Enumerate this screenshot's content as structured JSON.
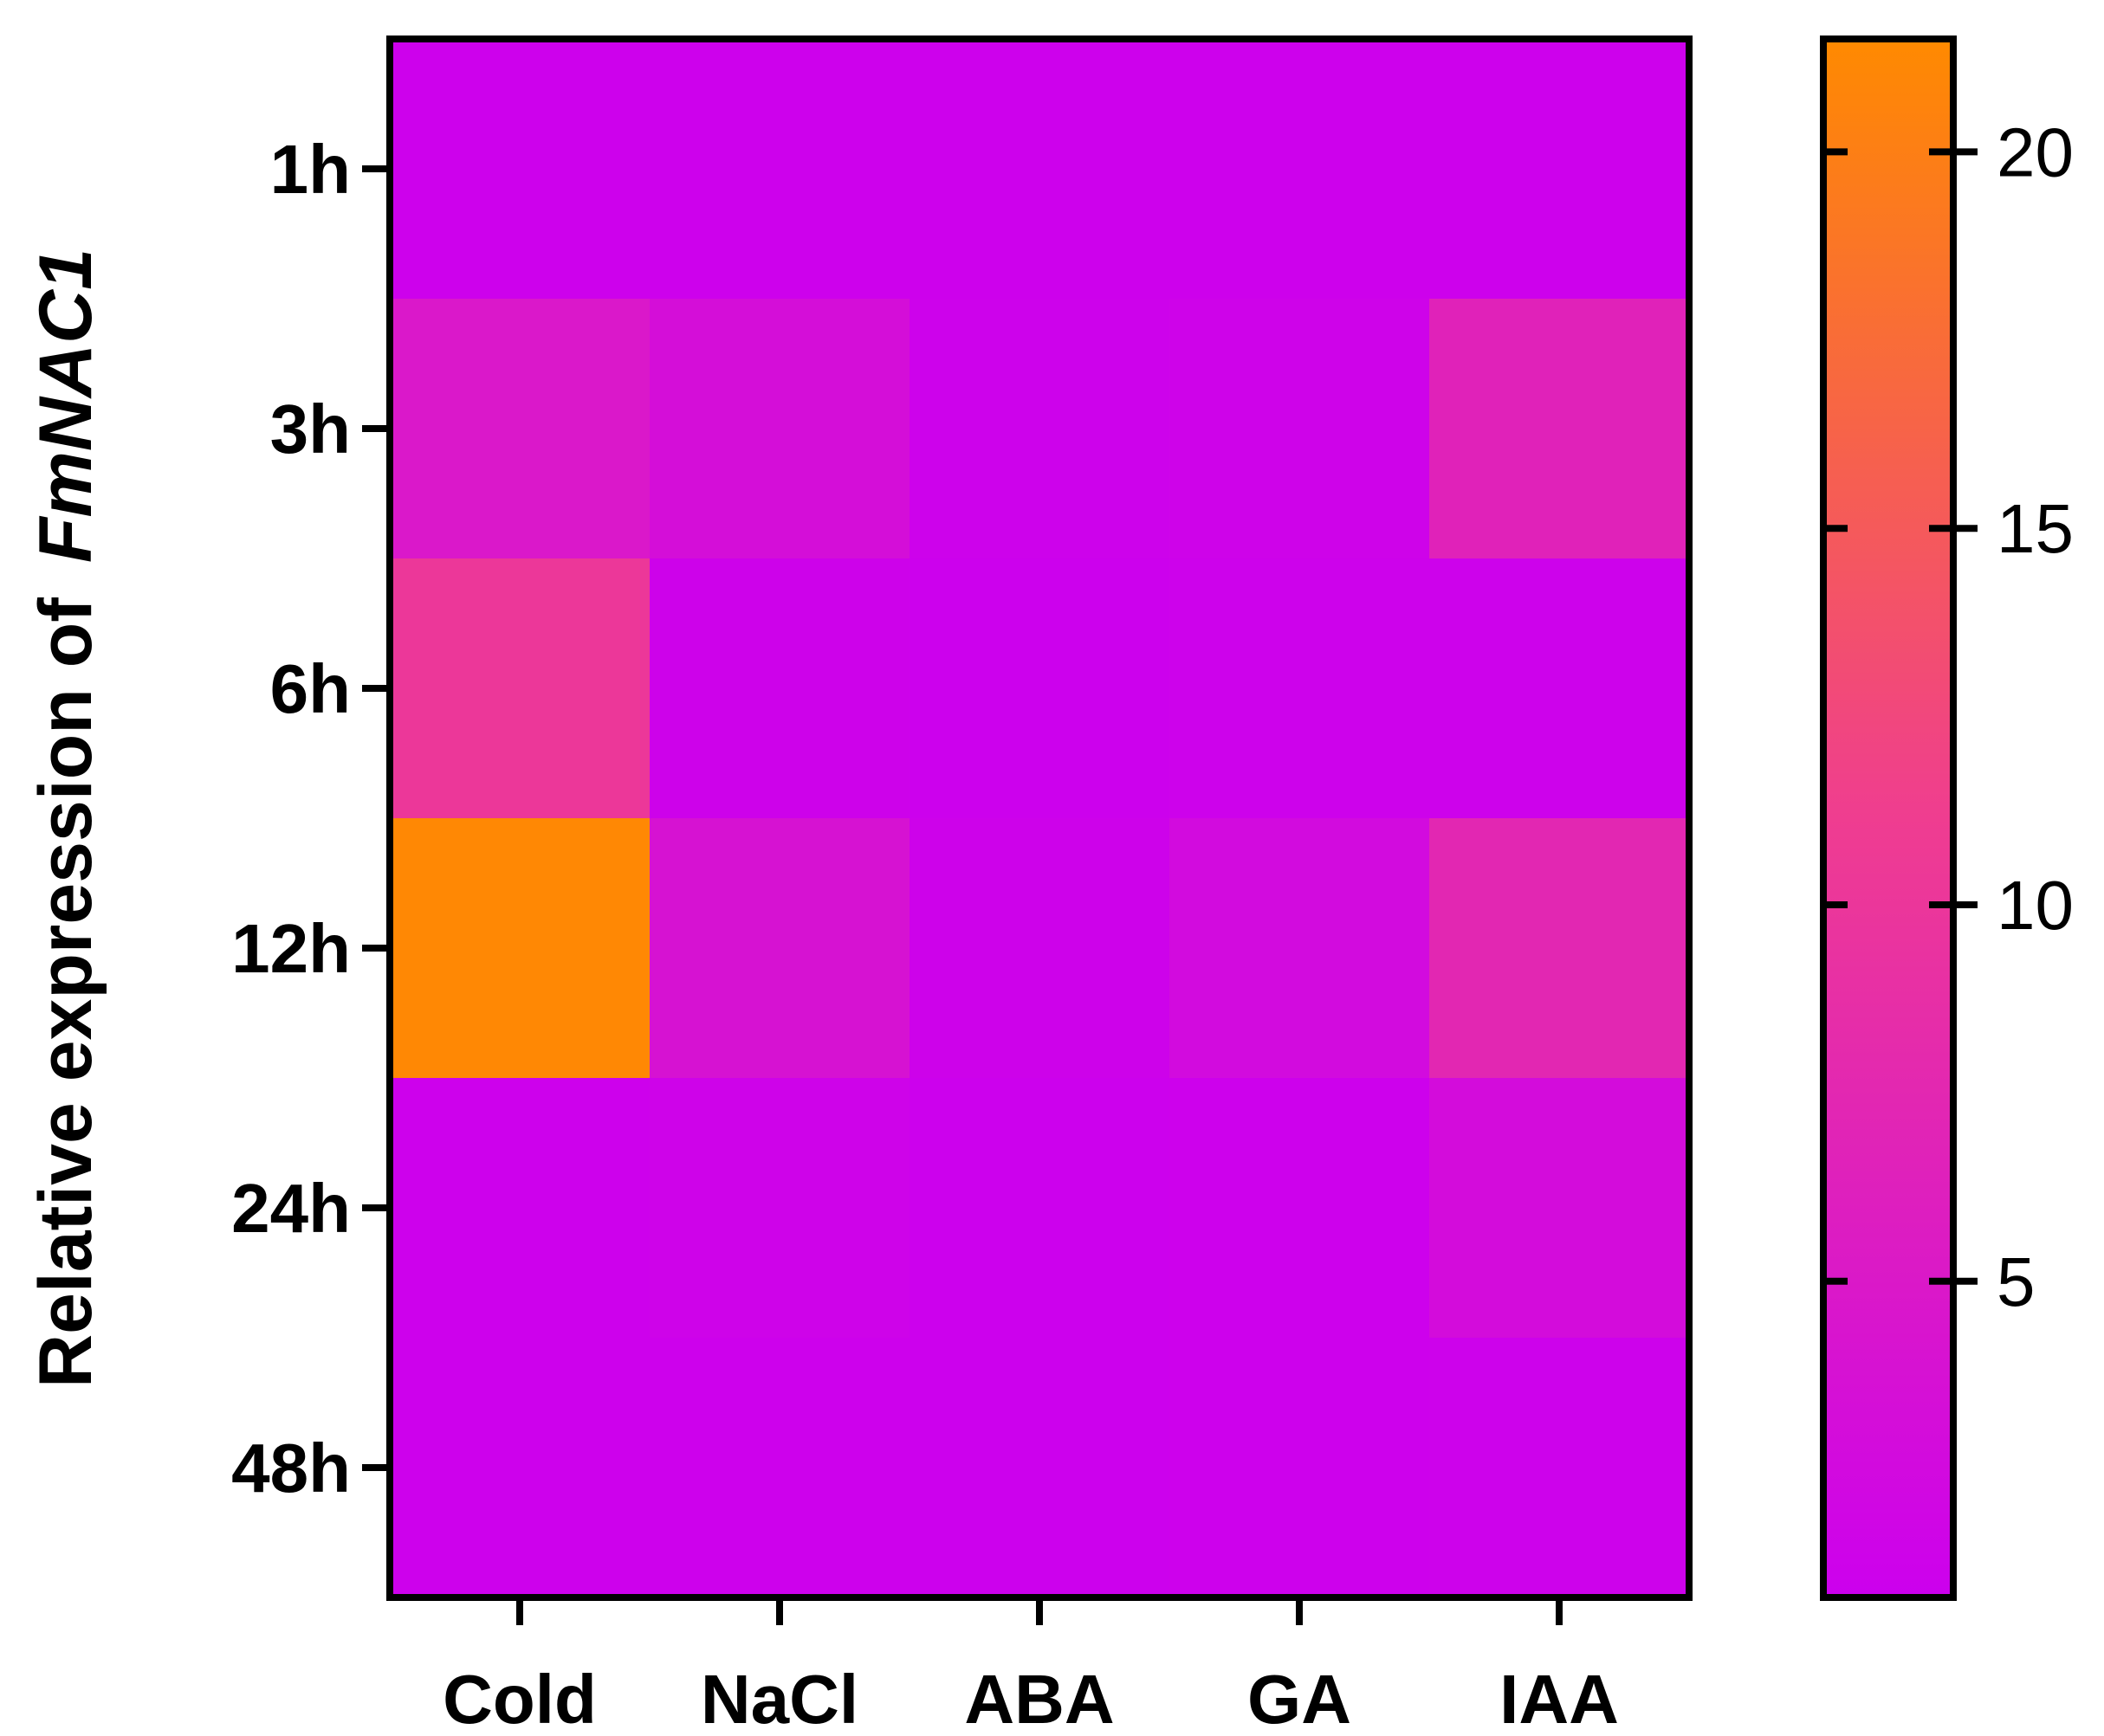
{
  "chart_data": {
    "type": "heatmap",
    "ylabel": "Relative expression of",
    "ylabel_gene": "FmNAC1",
    "x_categories": [
      "Cold",
      "NaCl",
      "ABA",
      "GA",
      "IAA"
    ],
    "y_categories": [
      "1h",
      "3h",
      "6h",
      "12h",
      "24h",
      "48h"
    ],
    "values": [
      [
        1.0,
        1.0,
        1.0,
        1.0,
        1.0
      ],
      [
        4.8,
        3.2,
        1.1,
        1.3,
        6.6
      ],
      [
        10.2,
        1.2,
        0.9,
        1.1,
        1.1
      ],
      [
        21.2,
        3.9,
        1.2,
        2.6,
        7.4
      ],
      [
        1.0,
        1.3,
        0.9,
        1.0,
        2.9
      ],
      [
        1.0,
        1.0,
        0.9,
        1.0,
        1.1
      ]
    ],
    "colorbar": {
      "range": [
        0.8,
        21.5
      ],
      "ticks": [
        5,
        10,
        15,
        20
      ],
      "colors": [
        "#cc00ee",
        "#ef3d90",
        "#ff8a00"
      ]
    },
    "grid": false
  }
}
